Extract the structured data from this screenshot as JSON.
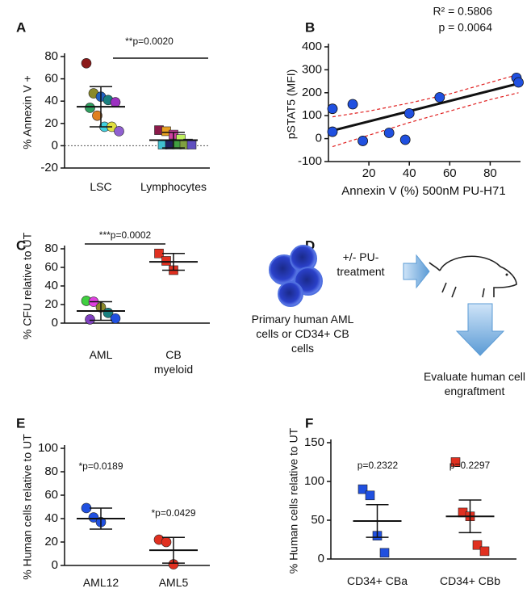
{
  "chart_data": [
    {
      "type": "dot",
      "panel": "A",
      "y_label": "% Annexin V +",
      "p_label": "**p=0.0020",
      "categories": [
        "LSC",
        "Lymphocytes"
      ],
      "markers": [
        "circle",
        "square"
      ],
      "values": [
        [
          74,
          47,
          44,
          41,
          39,
          34,
          27,
          17,
          17,
          13
        ],
        [
          14,
          13,
          10,
          6,
          2,
          1,
          1,
          1,
          1,
          1
        ]
      ],
      "colors": [
        [
          "#8b1a1a",
          "#8a8a2a",
          "#2060c0",
          "#1a8080",
          "#9b30c0",
          "#30a060",
          "#e08020",
          "#40d0e0",
          "#e0e040",
          "#9060d0"
        ],
        [
          "#8b1a4a",
          "#e8a020",
          "#d040a0",
          "#c0f060",
          "#2040a0",
          "#40c0d0",
          "#202060",
          "#40a040",
          "#80a040",
          "#6050c0"
        ]
      ],
      "means": [
        35,
        5
      ],
      "errors": [
        18,
        7
      ],
      "zero_line": true,
      "ylim": [
        -20,
        80
      ],
      "yticks": [
        -20,
        0,
        20,
        40,
        60,
        80
      ]
    },
    {
      "type": "scatter",
      "panel": "B",
      "x_label": "Annexin V (%) 500nM PU-H71",
      "y_label": "pSTAT5 (MFI)",
      "r2_label": "R² = 0.5806",
      "p_label": "p =  0.0064",
      "color": "#2050e0",
      "x": [
        2,
        2,
        12,
        17,
        30,
        38,
        40,
        55,
        93,
        94
      ],
      "values": [
        130,
        30,
        150,
        -10,
        25,
        -5,
        110,
        180,
        265,
        245
      ],
      "fit_x": [
        2,
        94
      ],
      "fit_y": [
        35,
        240
      ],
      "ci_x": [
        2,
        20,
        40,
        60,
        80,
        94
      ],
      "ci_upper": [
        95,
        120,
        155,
        195,
        245,
        280
      ],
      "ci_lower": [
        -35,
        15,
        70,
        120,
        170,
        200
      ],
      "xlim": [
        0,
        95
      ],
      "xticks": [
        20,
        40,
        60,
        80
      ],
      "ylim": [
        -100,
        400
      ],
      "yticks": [
        -100,
        0,
        100,
        200,
        300,
        400
      ]
    },
    {
      "type": "dot",
      "panel": "C",
      "y_label": "% CFU relative to UT",
      "p_label": "***p=0.0002",
      "categories": [
        "AML",
        "CB myeloid"
      ],
      "markers": [
        "circle",
        "square"
      ],
      "values": [
        [
          24,
          23,
          17,
          11,
          5,
          4
        ],
        [
          75,
          67,
          57
        ]
      ],
      "colors": [
        [
          "#40d040",
          "#e040e0",
          "#8a8a2a",
          "#1a8080",
          "#2050e0",
          "#8040c0"
        ],
        [
          "#e03020",
          "#e03020",
          "#e03020"
        ]
      ],
      "means": [
        13,
        66
      ],
      "errors": [
        10,
        9
      ],
      "ylim": [
        0,
        80
      ],
      "yticks": [
        0,
        20,
        40,
        60,
        80
      ]
    },
    {
      "type": "dot",
      "panel": "E",
      "y_label": "%  Human cells relative to UT",
      "p_labels": [
        "*p=0.0189",
        "*p=0.0429"
      ],
      "categories": [
        "AML12",
        "AML5"
      ],
      "markers": [
        "circle",
        "circle"
      ],
      "values": [
        [
          49,
          41,
          37
        ],
        [
          22,
          20,
          1
        ]
      ],
      "colors": [
        [
          "#2050e0",
          "#2050e0",
          "#2050e0"
        ],
        [
          "#e03020",
          "#e03020",
          "#e03020"
        ]
      ],
      "means": [
        40,
        13
      ],
      "errors": [
        9,
        11
      ],
      "ylim": [
        0,
        100
      ],
      "yticks": [
        0,
        20,
        40,
        60,
        80,
        100
      ]
    },
    {
      "type": "dot",
      "panel": "F",
      "y_label": "%  Human cells relative to UT",
      "p_labels": [
        "p=0.2322",
        "p=0.2297"
      ],
      "categories": [
        "CD34+ CBa",
        "CD34+ CBb"
      ],
      "markers": [
        "square",
        "square"
      ],
      "values": [
        [
          90,
          82,
          30,
          8
        ],
        [
          125,
          60,
          55,
          18,
          10
        ]
      ],
      "colors": [
        [
          "#2050e0",
          "#2050e0",
          "#2050e0",
          "#2050e0"
        ],
        [
          "#e03020",
          "#e03020",
          "#e03020",
          "#e03020",
          "#e03020"
        ]
      ],
      "means": [
        49,
        55
      ],
      "errors": [
        21,
        21
      ],
      "ylim": [
        0,
        150
      ],
      "yticks": [
        0,
        50,
        100,
        150
      ]
    }
  ],
  "diagram": {
    "panel": "D",
    "treatment": "+/-  PU-treatment",
    "cells": "Primary human AML cells or CD34+ CB cells",
    "outcome": "Evaluate human cell engraftment"
  }
}
